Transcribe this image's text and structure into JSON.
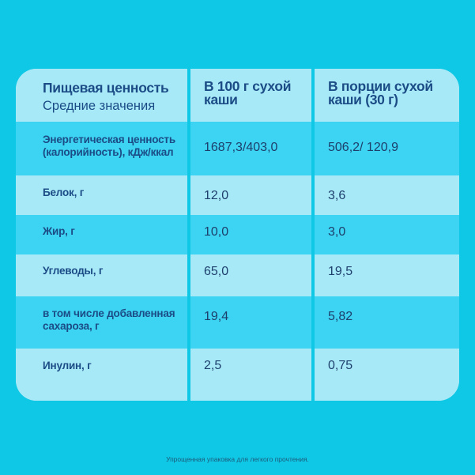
{
  "table": {
    "header": {
      "col1_title": "Пищевая ценность",
      "col1_subtitle": "Средние значения",
      "col2_line1": "В 100 г сухой",
      "col2_line2": "каши",
      "col3_line1": "В  порции сухой",
      "col3_line2": "каши  (30 г)"
    },
    "rows": [
      {
        "label_line1": "Энергетическая ценность",
        "label_line2": "(калорийность), кДж/ккал",
        "per100": "1687,3/403,0",
        "portion": "506,2/ 120,9"
      },
      {
        "label_line1": "Белок, г",
        "label_line2": "",
        "per100": "12,0",
        "portion": "3,6"
      },
      {
        "label_line1": "Жир, г",
        "label_line2": "",
        "per100": "10,0",
        "portion": "3,0"
      },
      {
        "label_line1": "Углеводы, г",
        "label_line2": "",
        "per100": "65,0",
        "portion": "19,5"
      },
      {
        "label_line1": "в том числе добавленная",
        "label_line2": "сахароза, г",
        "per100": "19,4",
        "portion": "5,82"
      },
      {
        "label_line1": "Инулин, г",
        "label_line2": "",
        "per100": "2,5",
        "portion": "0,75"
      }
    ]
  },
  "footnote": "Упрощенная упаковка для легкого прочтения.",
  "colors": {
    "background": "#0fc8e6",
    "row_light": "#a8e9f8",
    "row_dark": "#3dd3f2",
    "text": "#1b4c86"
  }
}
